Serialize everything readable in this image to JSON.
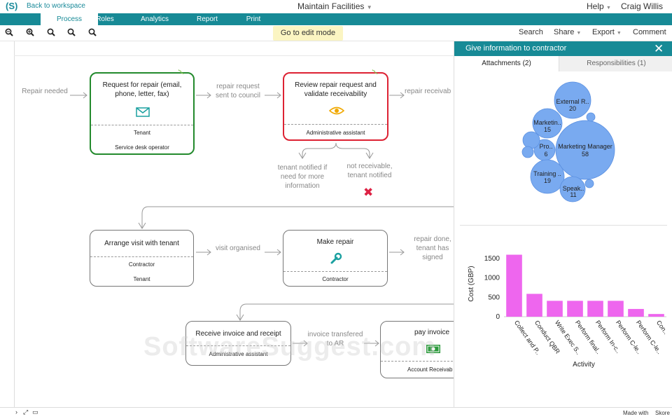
{
  "header": {
    "logo": "(S)",
    "back_link": "Back to workspace",
    "title": "Maintain Facilities",
    "help": "Help",
    "user": "Craig Willis"
  },
  "tabs": [
    "Process",
    "Roles",
    "Analytics",
    "Report",
    "Print"
  ],
  "toolbar": {
    "edit_mode": "Go to edit mode",
    "search": "Search",
    "share": "Share",
    "export": "Export",
    "comment": "Comment"
  },
  "process": {
    "box1": {
      "title": "Request for repair (email, phone, letter, fax)",
      "roles": [
        "Tenant",
        "Service desk operator"
      ]
    },
    "box2": {
      "title": "Review repair request and validate receivability",
      "roles": [
        "Administrative assistant"
      ]
    },
    "box3": {
      "title": "Arrange visit with tenant",
      "roles": [
        "Contractor",
        "Tenant"
      ]
    },
    "box4": {
      "title": "Make repair",
      "roles": [
        "Contractor"
      ]
    },
    "box5": {
      "title": "Receive invoice and receipt",
      "roles": [
        "Administrative assistant"
      ]
    },
    "box6": {
      "title": "pay invoice",
      "roles": [
        "Account Receivab"
      ]
    },
    "labels": {
      "repair_needed": "Repair needed",
      "repair_request": "repair request sent to council",
      "repair_receivable": "repair receivab",
      "tenant_notified": "tenant notified if need for more information",
      "not_receivable": "not receivable, tenant notified",
      "visit_organised": "visit organised",
      "repair_done": "repair done, tenant has signed",
      "invoice": "invoice transfered to AR"
    }
  },
  "panel": {
    "title": "Give information to contractor",
    "tab_attachments": "Attachments (2)",
    "tab_responsibilities": "Responsibilities (1)"
  },
  "bubbles": [
    {
      "label": "External R..",
      "value": "20"
    },
    {
      "label": "Marketin..",
      "value": "15"
    },
    {
      "label": "Pro..",
      "value": "6"
    },
    {
      "label": "Marketing Manager",
      "value": "58"
    },
    {
      "label": "Training ..",
      "value": "19"
    },
    {
      "label": "Speak..",
      "value": "11"
    }
  ],
  "chart_data": {
    "type": "bar",
    "categories": [
      "Collect and P..",
      "Conduct QBR",
      "Write Exec S..",
      "Perform final..",
      "Perform In-c..",
      "Perform C-le..",
      "Perform C-le..",
      "Con.."
    ],
    "values": [
      1600,
      590,
      410,
      410,
      410,
      410,
      200,
      70
    ],
    "xlabel": "Activity",
    "ylabel": "Cost (GBP)",
    "yticks": [
      "0",
      "500",
      "1000",
      "1500"
    ],
    "ylim": [
      0,
      1700
    ],
    "bar_color": "#ee66ee"
  },
  "footer": {
    "made_with": "Made with",
    "brand": "Skore"
  },
  "watermark": "SoftwareSuggest.com"
}
